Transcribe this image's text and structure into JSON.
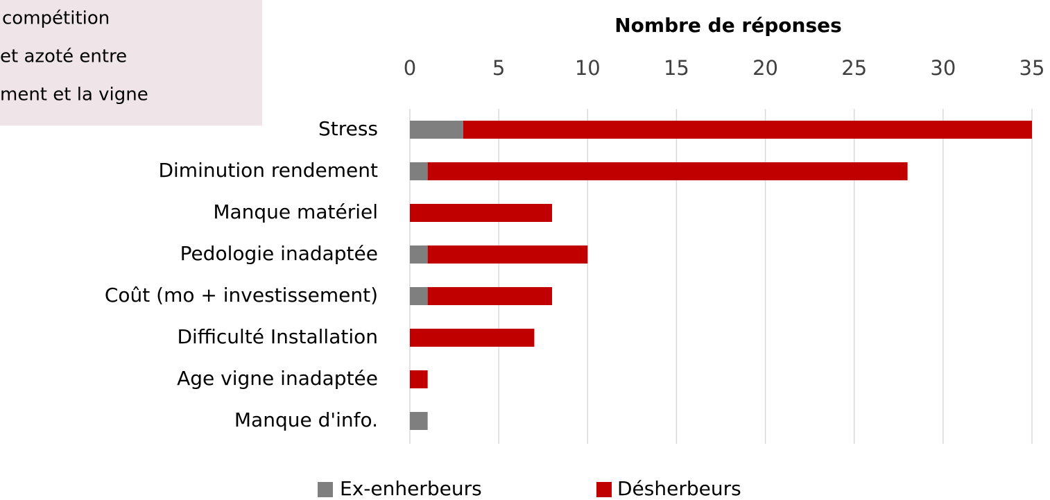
{
  "chart_data": {
    "type": "stacked-barh",
    "title": "Nombre de réponses",
    "annotation": [
      "compétition",
      "et azoté entre",
      "ment et la vigne"
    ],
    "categories": [
      "Stress",
      "Diminution rendement",
      "Manque matériel",
      "Pedologie inadaptée",
      "Coût (mo + investissement)",
      "Difficulté Installation",
      "Age vigne inadaptée",
      "Manque d'info."
    ],
    "series": [
      {
        "name": "Ex-enherbeurs",
        "color": "#7f7f7f",
        "values": [
          3,
          1,
          0,
          1,
          1,
          0,
          0,
          1
        ]
      },
      {
        "name": "Désherbeurs",
        "color": "#c00000",
        "values": [
          32,
          27,
          8,
          9,
          7,
          7,
          1,
          0
        ]
      }
    ],
    "xlim": [
      0,
      35
    ],
    "xticks": [
      0,
      5,
      10,
      15,
      20,
      25,
      30,
      35
    ],
    "grid": true,
    "legend": "bottom"
  }
}
